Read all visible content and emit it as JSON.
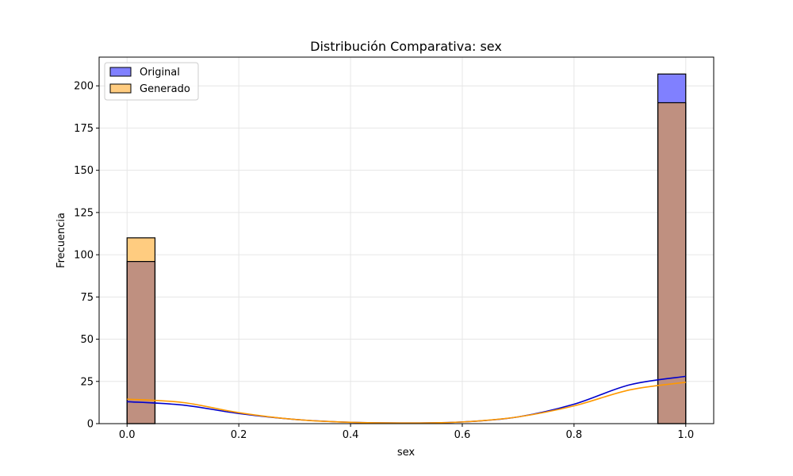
{
  "chart_data": {
    "type": "bar",
    "title": "Distribución Comparativa: sex",
    "xlabel": "sex",
    "ylabel": "Frecuencia",
    "xlim": [
      -0.05,
      1.05
    ],
    "ylim": [
      0,
      217
    ],
    "xticks": [
      "0.0",
      "0.2",
      "0.4",
      "0.6",
      "0.8",
      "1.0"
    ],
    "yticks": [
      "0",
      "25",
      "50",
      "75",
      "100",
      "125",
      "150",
      "175",
      "200"
    ],
    "grid": true,
    "legend_position": "top-left",
    "bins": [
      {
        "x0": 0.0,
        "x1": 0.05
      },
      {
        "x0": 0.95,
        "x1": 1.0
      }
    ],
    "series": [
      {
        "name": "Original",
        "bar_color": "#8080ff",
        "kde_color": "#0000cc",
        "counts": [
          96,
          207
        ],
        "kde": [
          [
            0.0,
            13
          ],
          [
            0.1,
            11
          ],
          [
            0.2,
            6
          ],
          [
            0.3,
            2.5
          ],
          [
            0.4,
            0.8
          ],
          [
            0.5,
            0.4
          ],
          [
            0.6,
            1
          ],
          [
            0.7,
            4
          ],
          [
            0.8,
            11.5
          ],
          [
            0.9,
            23
          ],
          [
            1.0,
            28
          ]
        ]
      },
      {
        "name": "Generado",
        "bar_color": "#ffcc80",
        "kde_color": "#ff9900",
        "counts": [
          110,
          190
        ],
        "kde": [
          [
            0.0,
            14.5
          ],
          [
            0.1,
            12.5
          ],
          [
            0.2,
            6.5
          ],
          [
            0.3,
            2.5
          ],
          [
            0.4,
            0.8
          ],
          [
            0.5,
            0.4
          ],
          [
            0.6,
            1
          ],
          [
            0.7,
            4
          ],
          [
            0.8,
            10.5
          ],
          [
            0.9,
            20
          ],
          [
            1.0,
            24.5
          ]
        ]
      }
    ],
    "overlap_color": "#bf9080"
  }
}
